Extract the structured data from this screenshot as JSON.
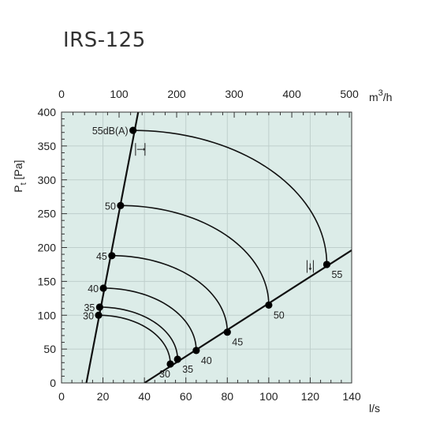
{
  "page": {
    "title": "IRS-125"
  },
  "colors": {
    "plot_background": "#dcece8",
    "grid": "#bfcfcc",
    "line": "#111111",
    "marker": "#000000"
  },
  "chart_data": {
    "type": "line",
    "title": "IRS-125",
    "xlabel": "l/s",
    "x2label": "m3/h",
    "x2label_parts": {
      "base": "m",
      "sup": "3",
      "rest": "/h"
    },
    "ylabel": "Pt [Pa]",
    "ylabel_parts": {
      "base": "P",
      "sub": "t",
      "rest": " [Pa]"
    },
    "xlim": [
      0,
      140
    ],
    "ylim": [
      0,
      400
    ],
    "x2lim": [
      0,
      504
    ],
    "xticks": [
      0,
      20,
      40,
      60,
      80,
      100,
      120,
      140
    ],
    "yticks": [
      0,
      50,
      100,
      150,
      200,
      250,
      300,
      350,
      400
    ],
    "x2ticks": [
      0,
      100,
      200,
      300,
      400,
      500
    ],
    "grid": true,
    "lower_line": [
      [
        40,
        0
      ],
      [
        140,
        196
      ]
    ],
    "upper_line": [
      [
        12,
        0
      ],
      [
        37,
        400
      ]
    ],
    "sound_curves": [
      {
        "label": "30",
        "start": [
          17.9,
          100
        ],
        "end": [
          52.5,
          28
        ]
      },
      {
        "label": "35",
        "start": [
          18.4,
          112
        ],
        "end": [
          56,
          35
        ]
      },
      {
        "label": "40",
        "start": [
          20.2,
          140
        ],
        "end": [
          65,
          48
        ]
      },
      {
        "label": "45",
        "start": [
          24.3,
          188
        ],
        "end": [
          80,
          75
        ]
      },
      {
        "label": "50",
        "start": [
          28.5,
          262
        ],
        "end": [
          100,
          115
        ]
      },
      {
        "label": "55",
        "start_label": "55dB(A)",
        "start": [
          34.5,
          373
        ],
        "end": [
          128,
          175
        ]
      }
    ],
    "annotations": [
      {
        "type": "tolerance-marker",
        "orientation": "horizontal",
        "x": 38,
        "y": 345
      },
      {
        "type": "tolerance-marker",
        "orientation": "vertical",
        "x": 120,
        "y": 172
      }
    ]
  }
}
